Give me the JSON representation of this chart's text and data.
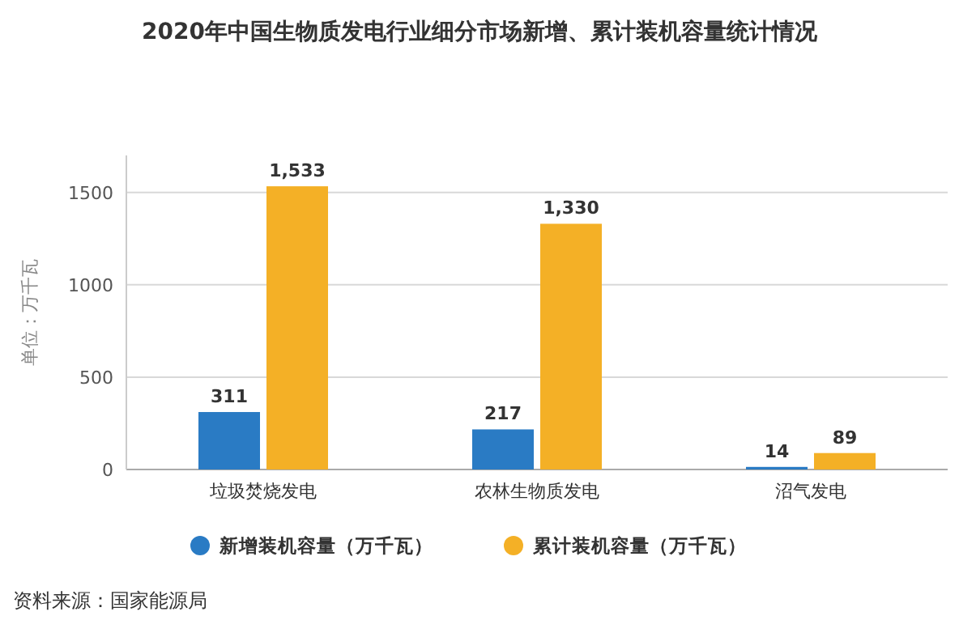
{
  "chart_data": {
    "type": "bar",
    "title": "2020年中国生物质发电行业细分市场新增、累计装机容量统计情况",
    "ylabel": "单位：万千瓦",
    "categories": [
      "垃圾焚烧发电",
      "农林生物质发电",
      "沼气发电"
    ],
    "series": [
      {
        "name": "新增装机容量（万千瓦）",
        "color": "#2a7bc4",
        "values": [
          311,
          217,
          14
        ],
        "value_labels": [
          "311",
          "217",
          "14"
        ]
      },
      {
        "name": "累计装机容量（万千瓦）",
        "color": "#f4b026",
        "values": [
          1533,
          1330,
          89
        ],
        "value_labels": [
          "1,533",
          "1,330",
          "89"
        ]
      }
    ],
    "ylim": [
      0,
      1700
    ],
    "yticks": [
      0,
      500,
      1000,
      1500
    ],
    "grid": "y",
    "legend": "bottom",
    "annotations": [
      "资料来源：国家能源局"
    ]
  }
}
